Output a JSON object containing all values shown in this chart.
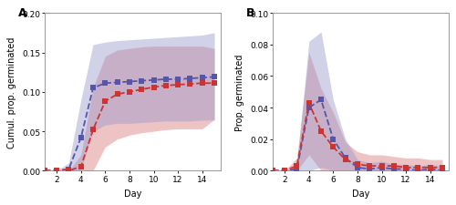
{
  "days": [
    1,
    2,
    3,
    4,
    5,
    6,
    7,
    8,
    9,
    10,
    11,
    12,
    13,
    14,
    15
  ],
  "A_blue_mean": [
    0.0,
    0.0,
    0.002,
    0.042,
    0.105,
    0.111,
    0.112,
    0.113,
    0.114,
    0.115,
    0.116,
    0.116,
    0.117,
    0.118,
    0.119
  ],
  "A_blue_hi": [
    0.0,
    0.0,
    0.01,
    0.09,
    0.16,
    0.163,
    0.165,
    0.166,
    0.167,
    0.168,
    0.169,
    0.17,
    0.171,
    0.172,
    0.175
  ],
  "A_blue_lo": [
    0.0,
    0.0,
    0.0,
    0.0,
    0.05,
    0.058,
    0.06,
    0.06,
    0.061,
    0.062,
    0.063,
    0.063,
    0.063,
    0.064,
    0.064
  ],
  "A_red_mean": [
    0.0,
    0.0,
    0.0,
    0.005,
    0.052,
    0.088,
    0.097,
    0.1,
    0.103,
    0.106,
    0.108,
    0.109,
    0.11,
    0.111,
    0.111
  ],
  "A_red_hi": [
    0.0,
    0.0,
    0.0,
    0.02,
    0.105,
    0.145,
    0.153,
    0.155,
    0.157,
    0.158,
    0.158,
    0.158,
    0.158,
    0.158,
    0.155
  ],
  "A_red_lo": [
    0.0,
    0.0,
    0.0,
    0.0,
    0.0,
    0.03,
    0.04,
    0.045,
    0.048,
    0.05,
    0.052,
    0.053,
    0.053,
    0.053,
    0.065
  ],
  "B_blue_mean": [
    0.0,
    0.0,
    0.001,
    0.04,
    0.045,
    0.02,
    0.008,
    0.002,
    0.001,
    0.002,
    0.001,
    0.001,
    0.0,
    0.001,
    0.0
  ],
  "B_blue_hi": [
    0.0,
    0.0,
    0.003,
    0.082,
    0.088,
    0.045,
    0.02,
    0.007,
    0.005,
    0.006,
    0.004,
    0.004,
    0.003,
    0.004,
    0.003
  ],
  "B_blue_lo": [
    0.0,
    0.0,
    0.0,
    0.0,
    0.002,
    0.0,
    0.0,
    0.0,
    0.0,
    0.0,
    0.0,
    0.0,
    0.0,
    0.0,
    0.0
  ],
  "B_red_mean": [
    0.0,
    0.0,
    0.003,
    0.043,
    0.025,
    0.015,
    0.007,
    0.004,
    0.003,
    0.003,
    0.003,
    0.002,
    0.002,
    0.002,
    0.002
  ],
  "B_red_hi": [
    0.0,
    0.0,
    0.008,
    0.075,
    0.052,
    0.037,
    0.018,
    0.012,
    0.01,
    0.01,
    0.009,
    0.008,
    0.008,
    0.007,
    0.007
  ],
  "B_red_lo": [
    0.0,
    0.0,
    0.0,
    0.01,
    0.0,
    0.0,
    0.0,
    0.0,
    0.0,
    0.0,
    0.0,
    0.0,
    0.0,
    0.0,
    0.0
  ],
  "blue_color": "#5555aa",
  "red_color": "#cc3333",
  "blue_fill": "#9999cc",
  "red_fill": "#dd8888",
  "A_ylabel": "Cumul. prop. germinated",
  "B_ylabel": "Prop. germinated",
  "xlabel": "Day",
  "A_ylim": [
    0.0,
    0.2
  ],
  "B_ylim": [
    0.0,
    0.1
  ],
  "A_yticks": [
    0.0,
    0.05,
    0.1,
    0.15,
    0.2
  ],
  "B_yticks": [
    0.0,
    0.02,
    0.04,
    0.06,
    0.08,
    0.1
  ],
  "xticks": [
    2,
    4,
    6,
    8,
    10,
    12,
    14
  ],
  "xlim": [
    1,
    15.5
  ],
  "label_A": "A",
  "label_B": "B"
}
